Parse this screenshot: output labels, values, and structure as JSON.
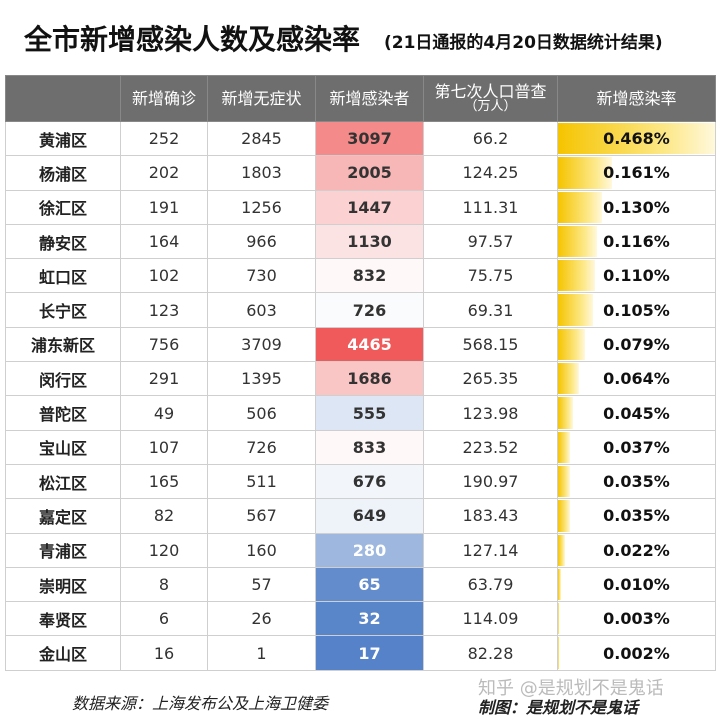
{
  "title": "全市新增感染人数及感染率",
  "subtitle": "(21日通报的4月20日数据统计结果)",
  "table": {
    "headers": [
      "新增确诊",
      "新增无症状",
      "新增感染者",
      "第七次人口普查",
      "新增感染率"
    ],
    "census_unit": "（万人）",
    "rows": [
      [
        "黄浦区",
        252,
        2845,
        3097,
        66.2,
        "0.468%"
      ],
      [
        "杨浦区",
        202,
        1803,
        2005,
        124.25,
        "0.161%"
      ],
      [
        "徐汇区",
        191,
        1256,
        1447,
        111.31,
        "0.130%"
      ],
      [
        "静安区",
        164,
        966,
        1130,
        97.57,
        "0.116%"
      ],
      [
        "虹口区",
        102,
        730,
        832,
        75.75,
        "0.110%"
      ],
      [
        "长宁区",
        123,
        603,
        726,
        69.31,
        "0.105%"
      ],
      [
        "浦东新区",
        756,
        3709,
        4465,
        568.15,
        "0.079%"
      ],
      [
        "闵行区",
        291,
        1395,
        1686,
        265.35,
        "0.064%"
      ],
      [
        "普陀区",
        49,
        506,
        555,
        123.98,
        "0.045%"
      ],
      [
        "宝山区",
        107,
        726,
        833,
        223.52,
        "0.037%"
      ],
      [
        "松江区",
        165,
        511,
        676,
        190.97,
        "0.035%"
      ],
      [
        "嘉定区",
        82,
        567,
        649,
        183.43,
        "0.035%"
      ],
      [
        "青浦区",
        120,
        160,
        280,
        127.14,
        "0.022%"
      ],
      [
        "崇明区",
        8,
        57,
        65,
        63.79,
        "0.010%"
      ],
      [
        "奉贤区",
        6,
        26,
        32,
        114.09,
        "0.003%"
      ],
      [
        "金山区",
        16,
        1,
        17,
        82.28,
        "0.002%"
      ]
    ]
  },
  "footer": {
    "source": "数据来源：上海发布公及上海卫健委",
    "credit": "制图：是规划不是鬼话",
    "watermark": "知乎 @是规划不是鬼话"
  }
}
